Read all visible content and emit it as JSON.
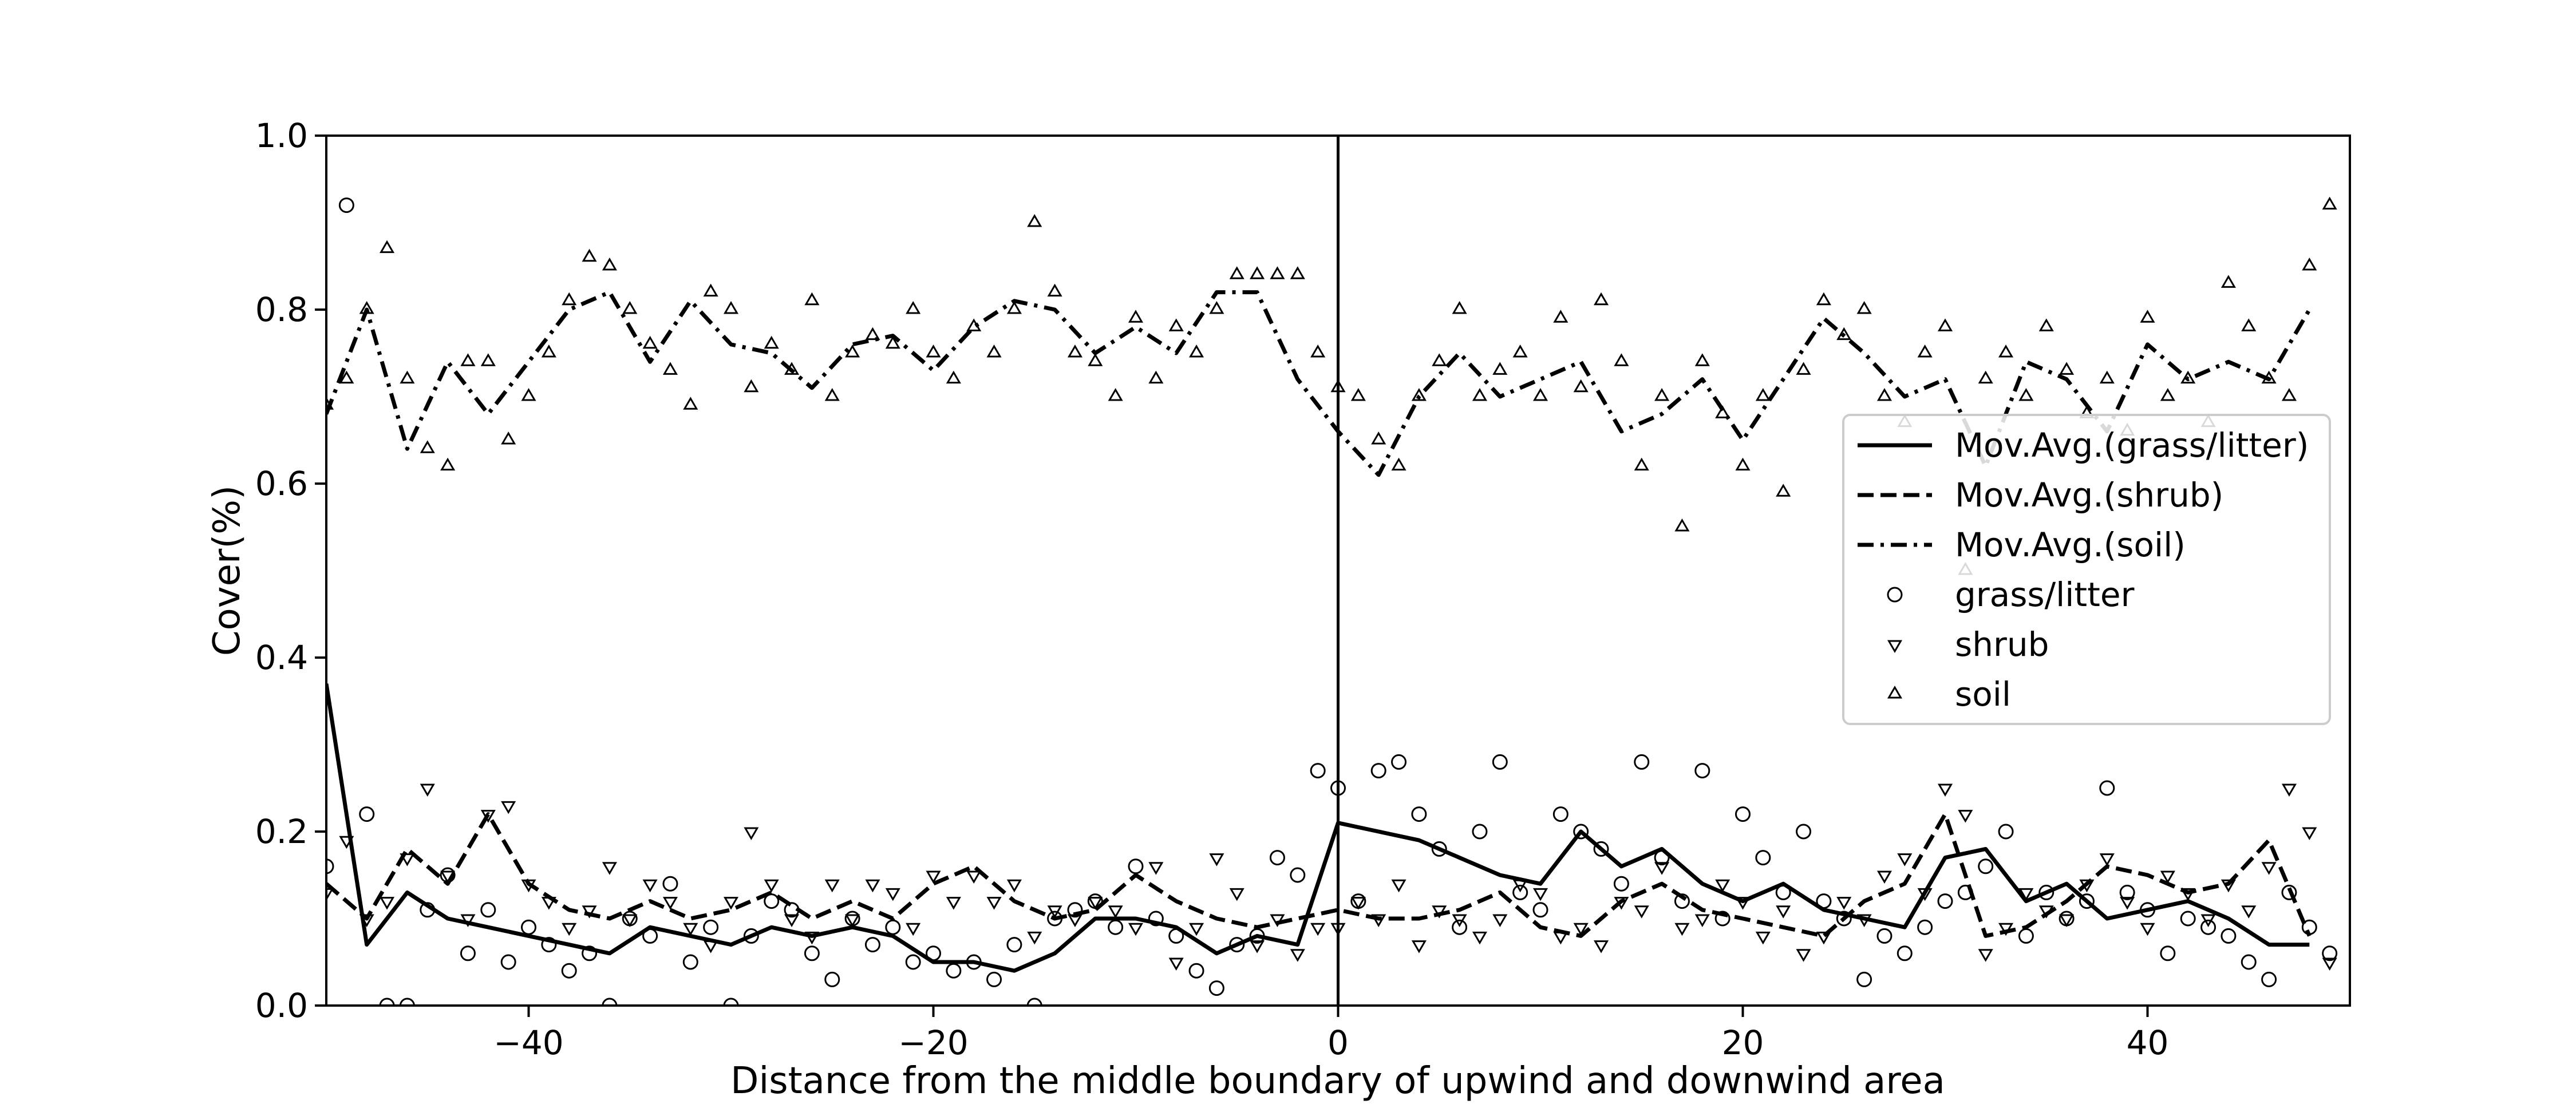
{
  "chart_data": {
    "type": "line",
    "title": "",
    "xlabel": "Distance from the middle boundary of upwind and downwind area",
    "ylabel": "Cover(%)",
    "xlim": [
      -50,
      50
    ],
    "ylim": [
      0,
      1
    ],
    "xticks": [
      -40,
      -20,
      0,
      20,
      40
    ],
    "yticks": [
      0.0,
      0.2,
      0.4,
      0.6,
      0.8,
      1.0
    ],
    "xtick_labels": [
      "−40",
      "−20",
      "0",
      "20",
      "40"
    ],
    "ytick_labels": [
      "0.0",
      "0.2",
      "0.4",
      "0.6",
      "0.8",
      "1.0"
    ],
    "grid": false,
    "legend_position": "right",
    "vertical_line_x": 0,
    "x": [
      -50,
      -48,
      -46,
      -44,
      -42,
      -40,
      -38,
      -36,
      -34,
      -32,
      -30,
      -28,
      -26,
      -24,
      -22,
      -20,
      -18,
      -16,
      -14,
      -12,
      -10,
      -8,
      -6,
      -4,
      -2,
      0,
      2,
      4,
      6,
      8,
      10,
      12,
      14,
      16,
      18,
      20,
      22,
      24,
      26,
      28,
      30,
      32,
      34,
      36,
      38,
      40,
      42,
      44,
      46,
      48
    ],
    "series": [
      {
        "name": "Mov.Avg.(grass/litter)",
        "style": "solid",
        "values": [
          0.37,
          0.07,
          0.13,
          0.1,
          0.09,
          0.08,
          0.07,
          0.06,
          0.09,
          0.08,
          0.07,
          0.09,
          0.08,
          0.09,
          0.08,
          0.05,
          0.05,
          0.04,
          0.06,
          0.1,
          0.1,
          0.09,
          0.06,
          0.08,
          0.07,
          0.21,
          0.2,
          0.19,
          0.17,
          0.15,
          0.14,
          0.2,
          0.16,
          0.18,
          0.14,
          0.12,
          0.14,
          0.11,
          0.1,
          0.09,
          0.17,
          0.18,
          0.12,
          0.14,
          0.1,
          0.11,
          0.12,
          0.1,
          0.07,
          0.07
        ]
      },
      {
        "name": "Mov.Avg.(shrub)",
        "style": "dashed",
        "values": [
          0.14,
          0.1,
          0.18,
          0.14,
          0.22,
          0.14,
          0.11,
          0.1,
          0.12,
          0.1,
          0.11,
          0.13,
          0.1,
          0.12,
          0.1,
          0.14,
          0.16,
          0.12,
          0.1,
          0.11,
          0.15,
          0.12,
          0.1,
          0.09,
          0.1,
          0.11,
          0.1,
          0.1,
          0.11,
          0.13,
          0.09,
          0.08,
          0.12,
          0.14,
          0.11,
          0.1,
          0.09,
          0.08,
          0.12,
          0.14,
          0.22,
          0.08,
          0.09,
          0.12,
          0.16,
          0.15,
          0.13,
          0.14,
          0.19,
          0.08
        ]
      },
      {
        "name": "Mov.Avg.(soil)",
        "style": "dashdot",
        "values": [
          0.68,
          0.8,
          0.64,
          0.74,
          0.68,
          0.74,
          0.8,
          0.82,
          0.74,
          0.81,
          0.76,
          0.75,
          0.71,
          0.76,
          0.77,
          0.73,
          0.78,
          0.81,
          0.8,
          0.75,
          0.78,
          0.75,
          0.82,
          0.82,
          0.72,
          0.66,
          0.61,
          0.7,
          0.75,
          0.7,
          0.72,
          0.74,
          0.66,
          0.68,
          0.72,
          0.65,
          0.72,
          0.79,
          0.75,
          0.7,
          0.72,
          0.62,
          0.74,
          0.72,
          0.66,
          0.76,
          0.72,
          0.74,
          0.72,
          0.8
        ]
      }
    ],
    "scatter": [
      {
        "name": "grass/litter",
        "marker": "circle",
        "x": [
          -50,
          -49,
          -48,
          -47,
          -46,
          -45,
          -44,
          -43,
          -42,
          -41,
          -40,
          -39,
          -38,
          -37,
          -36,
          -35,
          -34,
          -33,
          -32,
          -31,
          -30,
          -29,
          -28,
          -27,
          -26,
          -25,
          -24,
          -23,
          -22,
          -21,
          -20,
          -19,
          -18,
          -17,
          -16,
          -15,
          -14,
          -13,
          -12,
          -11,
          -10,
          -9,
          -8,
          -7,
          -6,
          -5,
          -4,
          -3,
          -2,
          -1,
          0,
          1,
          2,
          3,
          4,
          5,
          6,
          7,
          8,
          9,
          10,
          11,
          12,
          13,
          14,
          15,
          16,
          17,
          18,
          19,
          20,
          21,
          22,
          23,
          24,
          25,
          26,
          27,
          28,
          29,
          30,
          31,
          32,
          33,
          34,
          35,
          36,
          37,
          38,
          39,
          40,
          41,
          42,
          43,
          44,
          45,
          46,
          47,
          48,
          49
        ],
        "y": [
          0.16,
          0.92,
          0.22,
          0.0,
          0.0,
          0.11,
          0.15,
          0.06,
          0.11,
          0.05,
          0.09,
          0.07,
          0.04,
          0.06,
          0.0,
          0.1,
          0.08,
          0.14,
          0.05,
          0.09,
          0.0,
          0.08,
          0.12,
          0.11,
          0.06,
          0.03,
          0.1,
          0.07,
          0.09,
          0.05,
          0.06,
          0.04,
          0.05,
          0.03,
          0.07,
          0.0,
          0.1,
          0.11,
          0.12,
          0.09,
          0.16,
          0.1,
          0.08,
          0.04,
          0.02,
          0.07,
          0.08,
          0.17,
          0.15,
          0.27,
          0.25,
          0.12,
          0.27,
          0.28,
          0.22,
          0.18,
          0.09,
          0.2,
          0.28,
          0.13,
          0.11,
          0.22,
          0.2,
          0.18,
          0.14,
          0.28,
          0.17,
          0.12,
          0.27,
          0.1,
          0.22,
          0.17,
          0.13,
          0.2,
          0.12,
          0.1,
          0.03,
          0.08,
          0.06,
          0.09,
          0.12,
          0.13,
          0.16,
          0.2,
          0.08,
          0.13,
          0.1,
          0.12,
          0.25,
          0.13,
          0.11,
          0.06,
          0.1,
          0.09,
          0.08,
          0.05,
          0.03,
          0.13,
          0.09,
          0.06
        ]
      },
      {
        "name": "shrub",
        "marker": "triangle-down",
        "x": [
          -50,
          -49,
          -48,
          -47,
          -46,
          -45,
          -44,
          -43,
          -42,
          -41,
          -40,
          -39,
          -38,
          -37,
          -36,
          -35,
          -34,
          -33,
          -32,
          -31,
          -30,
          -29,
          -28,
          -27,
          -26,
          -25,
          -24,
          -23,
          -22,
          -21,
          -20,
          -19,
          -18,
          -17,
          -16,
          -15,
          -14,
          -13,
          -12,
          -11,
          -10,
          -9,
          -8,
          -7,
          -6,
          -5,
          -4,
          -3,
          -2,
          -1,
          0,
          1,
          2,
          3,
          4,
          5,
          6,
          7,
          8,
          9,
          10,
          11,
          12,
          13,
          14,
          15,
          16,
          17,
          18,
          19,
          20,
          21,
          22,
          23,
          24,
          25,
          26,
          27,
          28,
          29,
          30,
          31,
          32,
          33,
          34,
          35,
          36,
          37,
          38,
          39,
          40,
          41,
          42,
          43,
          44,
          45,
          46,
          47,
          48,
          49
        ],
        "y": [
          0.13,
          0.19,
          0.1,
          0.12,
          0.17,
          0.25,
          0.15,
          0.1,
          0.22,
          0.23,
          0.14,
          0.12,
          0.09,
          0.11,
          0.16,
          0.1,
          0.14,
          0.12,
          0.09,
          0.07,
          0.12,
          0.2,
          0.14,
          0.1,
          0.08,
          0.14,
          0.1,
          0.14,
          0.13,
          0.09,
          0.15,
          0.12,
          0.15,
          0.12,
          0.14,
          0.08,
          0.11,
          0.1,
          0.12,
          0.11,
          0.09,
          0.16,
          0.05,
          0.09,
          0.17,
          0.13,
          0.07,
          0.1,
          0.06,
          0.09,
          0.09,
          0.12,
          0.1,
          0.14,
          0.07,
          0.11,
          0.1,
          0.08,
          0.1,
          0.14,
          0.13,
          0.08,
          0.09,
          0.07,
          0.12,
          0.11,
          0.16,
          0.09,
          0.1,
          0.14,
          0.12,
          0.08,
          0.11,
          0.06,
          0.08,
          0.12,
          0.1,
          0.15,
          0.17,
          0.13,
          0.25,
          0.22,
          0.06,
          0.09,
          0.13,
          0.11,
          0.1,
          0.14,
          0.17,
          0.12,
          0.09,
          0.15,
          0.13,
          0.1,
          0.14,
          0.11,
          0.16,
          0.25,
          0.2,
          0.05
        ]
      },
      {
        "name": "soil",
        "marker": "triangle-up",
        "x": [
          -50,
          -49,
          -48,
          -47,
          -46,
          -45,
          -44,
          -43,
          -42,
          -41,
          -40,
          -39,
          -38,
          -37,
          -36,
          -35,
          -34,
          -33,
          -32,
          -31,
          -30,
          -29,
          -28,
          -27,
          -26,
          -25,
          -24,
          -23,
          -22,
          -21,
          -20,
          -19,
          -18,
          -17,
          -16,
          -15,
          -14,
          -13,
          -12,
          -11,
          -10,
          -9,
          -8,
          -7,
          -6,
          -5,
          -4,
          -3,
          -2,
          -1,
          0,
          1,
          2,
          3,
          4,
          5,
          6,
          7,
          8,
          9,
          10,
          11,
          12,
          13,
          14,
          15,
          16,
          17,
          18,
          19,
          20,
          21,
          22,
          23,
          24,
          25,
          26,
          27,
          28,
          29,
          30,
          31,
          32,
          33,
          34,
          35,
          36,
          37,
          38,
          39,
          40,
          41,
          42,
          43,
          44,
          45,
          46,
          47,
          48,
          49
        ],
        "y": [
          0.69,
          0.72,
          0.8,
          0.87,
          0.72,
          0.64,
          0.62,
          0.74,
          0.74,
          0.65,
          0.7,
          0.75,
          0.81,
          0.86,
          0.85,
          0.8,
          0.76,
          0.73,
          0.69,
          0.82,
          0.8,
          0.71,
          0.76,
          0.73,
          0.81,
          0.7,
          0.75,
          0.77,
          0.76,
          0.8,
          0.75,
          0.72,
          0.78,
          0.75,
          0.8,
          0.9,
          0.82,
          0.75,
          0.74,
          0.7,
          0.79,
          0.72,
          0.78,
          0.75,
          0.8,
          0.84,
          0.84,
          0.84,
          0.84,
          0.75,
          0.71,
          0.7,
          0.65,
          0.62,
          0.7,
          0.74,
          0.8,
          0.7,
          0.73,
          0.75,
          0.7,
          0.79,
          0.71,
          0.81,
          0.74,
          0.62,
          0.7,
          0.55,
          0.74,
          0.68,
          0.62,
          0.7,
          0.59,
          0.73,
          0.81,
          0.77,
          0.8,
          0.7,
          0.67,
          0.75,
          0.78,
          0.5,
          0.72,
          0.75,
          0.7,
          0.78,
          0.73,
          0.68,
          0.72,
          0.66,
          0.79,
          0.7,
          0.72,
          0.67,
          0.83,
          0.78,
          0.72,
          0.7,
          0.85,
          0.92
        ]
      }
    ]
  }
}
